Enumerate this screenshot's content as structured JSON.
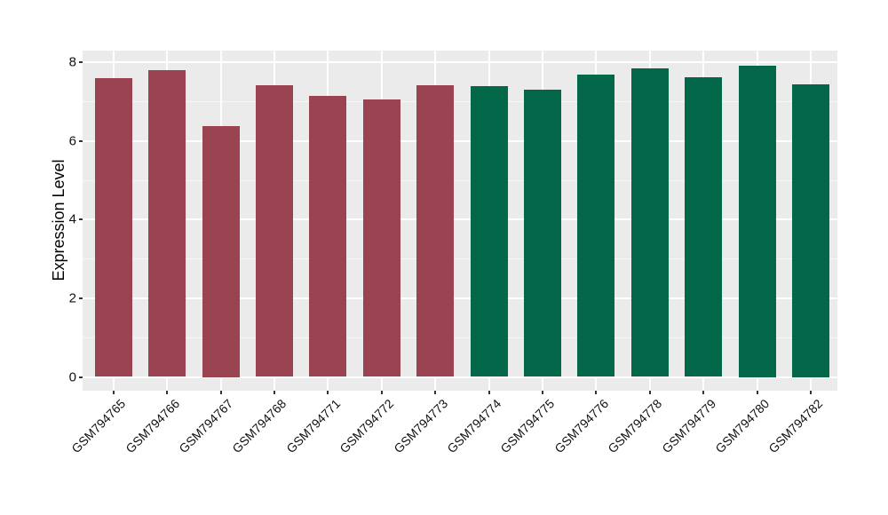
{
  "chart_data": {
    "type": "bar",
    "title": "",
    "xlabel": "",
    "ylabel": "Expression Level",
    "categories": [
      "GSM794765",
      "GSM794766",
      "GSM794767",
      "GSM794768",
      "GSM794771",
      "GSM794772",
      "GSM794773",
      "GSM794774",
      "GSM794775",
      "GSM794776",
      "GSM794778",
      "GSM794779",
      "GSM794780",
      "GSM794782"
    ],
    "values": [
      7.6,
      7.81,
      6.37,
      7.42,
      7.15,
      7.05,
      7.42,
      7.4,
      7.31,
      7.68,
      7.84,
      7.63,
      7.91,
      7.44
    ],
    "bar_colors": [
      "#9B4451",
      "#9B4451",
      "#9B4451",
      "#9B4451",
      "#9B4451",
      "#9B4451",
      "#9B4451",
      "#03684A",
      "#03684A",
      "#03684A",
      "#03684A",
      "#03684A",
      "#03684A",
      "#03684A"
    ],
    "group_colors": {
      "left_group": "#9B4451",
      "right_group": "#03684A"
    },
    "yticks": [
      0,
      2,
      4,
      6,
      8
    ],
    "yticks_minor": [
      1,
      3,
      5,
      7
    ],
    "ylim": [
      -0.35,
      8.3
    ],
    "grid": true,
    "legend": "none",
    "panel_bg": "#EBEBEB",
    "grid_color": "#FFFFFF",
    "tick_mark_color": "#333333",
    "text_color": "#111111",
    "background": "#FFFFFF"
  }
}
